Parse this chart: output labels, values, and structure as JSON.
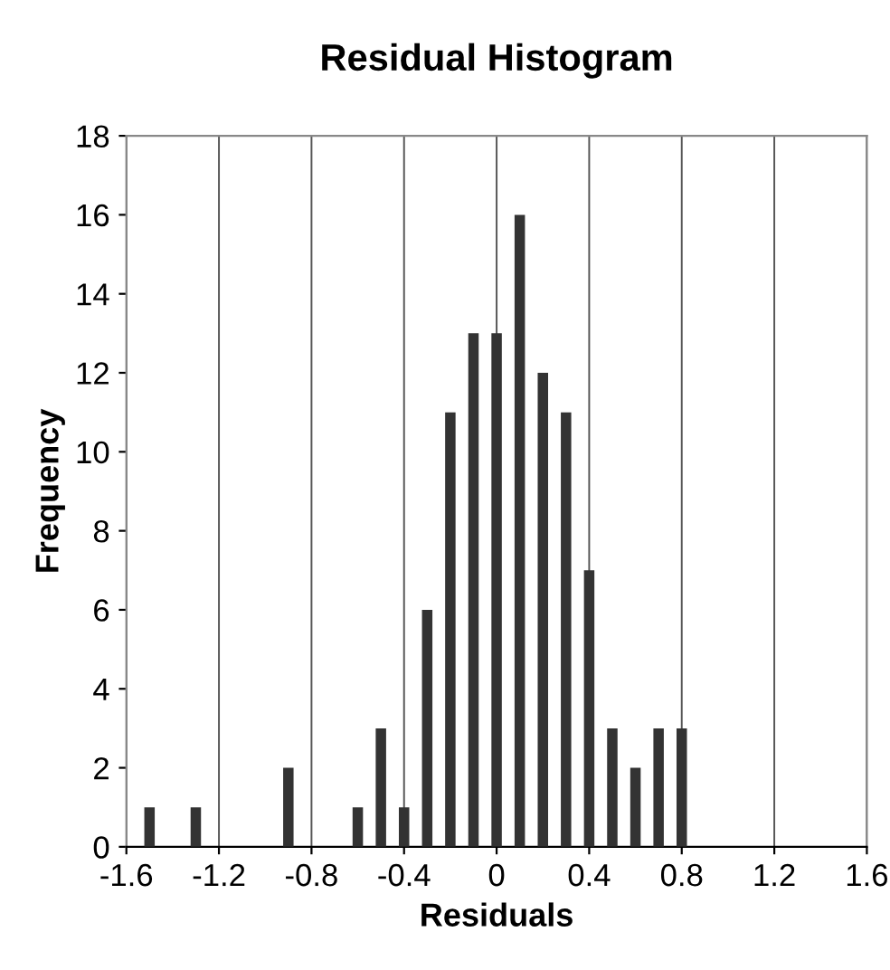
{
  "chart_data": {
    "type": "histogram",
    "title": "Residual Histogram",
    "xlabel": "Residuals",
    "ylabel": "Frequency",
    "bins": [
      -1.55,
      -1.45,
      -1.35,
      -1.25,
      -1.15,
      -1.05,
      -0.95,
      -0.85,
      -0.75,
      -0.65,
      -0.55,
      -0.45,
      -0.35,
      -0.25,
      -0.15,
      -0.05,
      0.05,
      0.15,
      0.25,
      0.35,
      0.45,
      0.55,
      0.65,
      0.75,
      0.85
    ],
    "values": [
      1,
      0,
      1,
      0,
      0,
      0,
      2,
      0,
      0,
      1,
      3,
      1,
      6,
      11,
      13,
      13,
      16,
      12,
      11,
      7,
      3,
      2,
      3,
      3
    ],
    "color": "#333333",
    "xlim": [
      -1.6,
      1.6
    ],
    "xticks": [
      -1.6,
      -1.2,
      -0.8,
      -0.4,
      0,
      0.4,
      0.8,
      1.2,
      1.6
    ],
    "ylim": [
      0,
      18
    ],
    "yticks": [
      0,
      2,
      4,
      6,
      8,
      10,
      12,
      14,
      16,
      18
    ],
    "grid": "x"
  }
}
